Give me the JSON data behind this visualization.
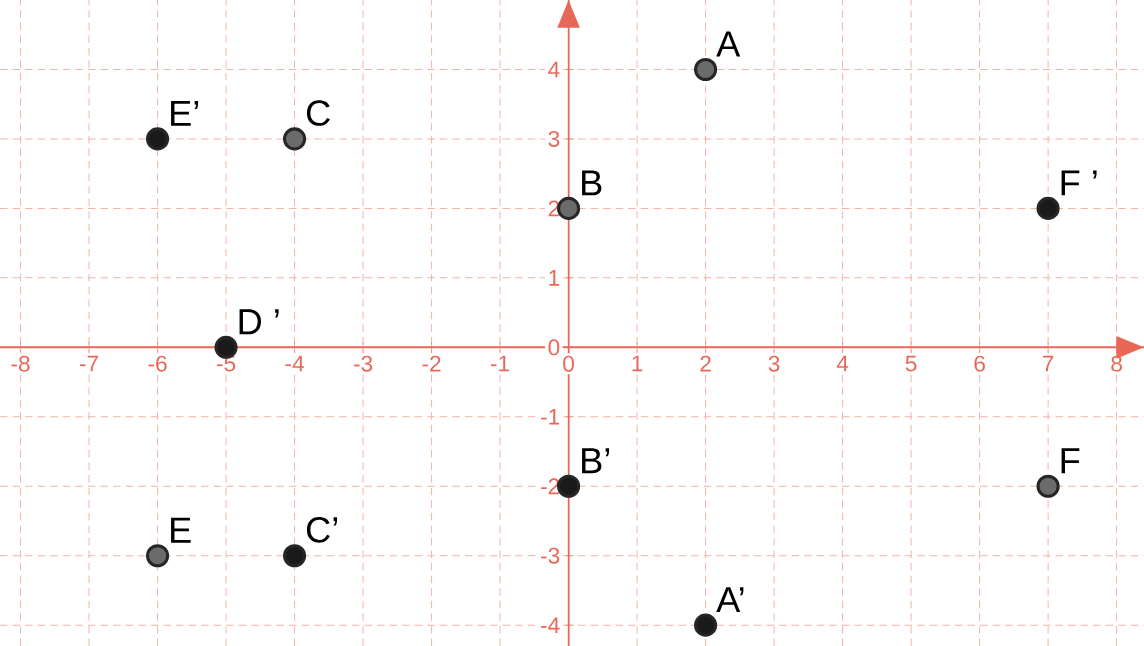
{
  "chart_data": {
    "type": "scatter",
    "xlim": [
      -8.3,
      8.4
    ],
    "ylim": [
      -4.3,
      5
    ],
    "xticks": [
      -8,
      -7,
      -6,
      -5,
      -4,
      -3,
      -2,
      -1,
      0,
      1,
      2,
      3,
      4,
      5,
      6,
      7,
      8
    ],
    "yticks": [
      -4,
      -3,
      -2,
      -1,
      0,
      1,
      2,
      3,
      4
    ],
    "grid": true,
    "series": [
      {
        "color": "#6b6b6b",
        "x": [
          2,
          0,
          -4,
          -6,
          7
        ],
        "values": [
          4,
          2,
          3,
          -3,
          -2
        ]
      },
      {
        "color": "#1a1a1a",
        "x": [
          2,
          0,
          -4,
          -5,
          -6,
          7
        ],
        "values": [
          -4,
          -2,
          -3,
          0,
          3,
          2
        ]
      }
    ],
    "annotations": [
      {
        "text": "A",
        "x": 2,
        "y": 4
      },
      {
        "text": "B",
        "x": 0,
        "y": 2
      },
      {
        "text": "C",
        "x": -4,
        "y": 3
      },
      {
        "text": "E",
        "x": -6,
        "y": -3
      },
      {
        "text": "F",
        "x": 7,
        "y": -2
      },
      {
        "text": "A’",
        "x": 2,
        "y": -4
      },
      {
        "text": "B’",
        "x": 0,
        "y": -2
      },
      {
        "text": "C’",
        "x": -4,
        "y": -3
      },
      {
        "text": "D ’",
        "x": -5,
        "y": 0
      },
      {
        "text": "E’",
        "x": -6,
        "y": 3
      },
      {
        "text": "F ’",
        "x": 7,
        "y": 2
      }
    ]
  }
}
